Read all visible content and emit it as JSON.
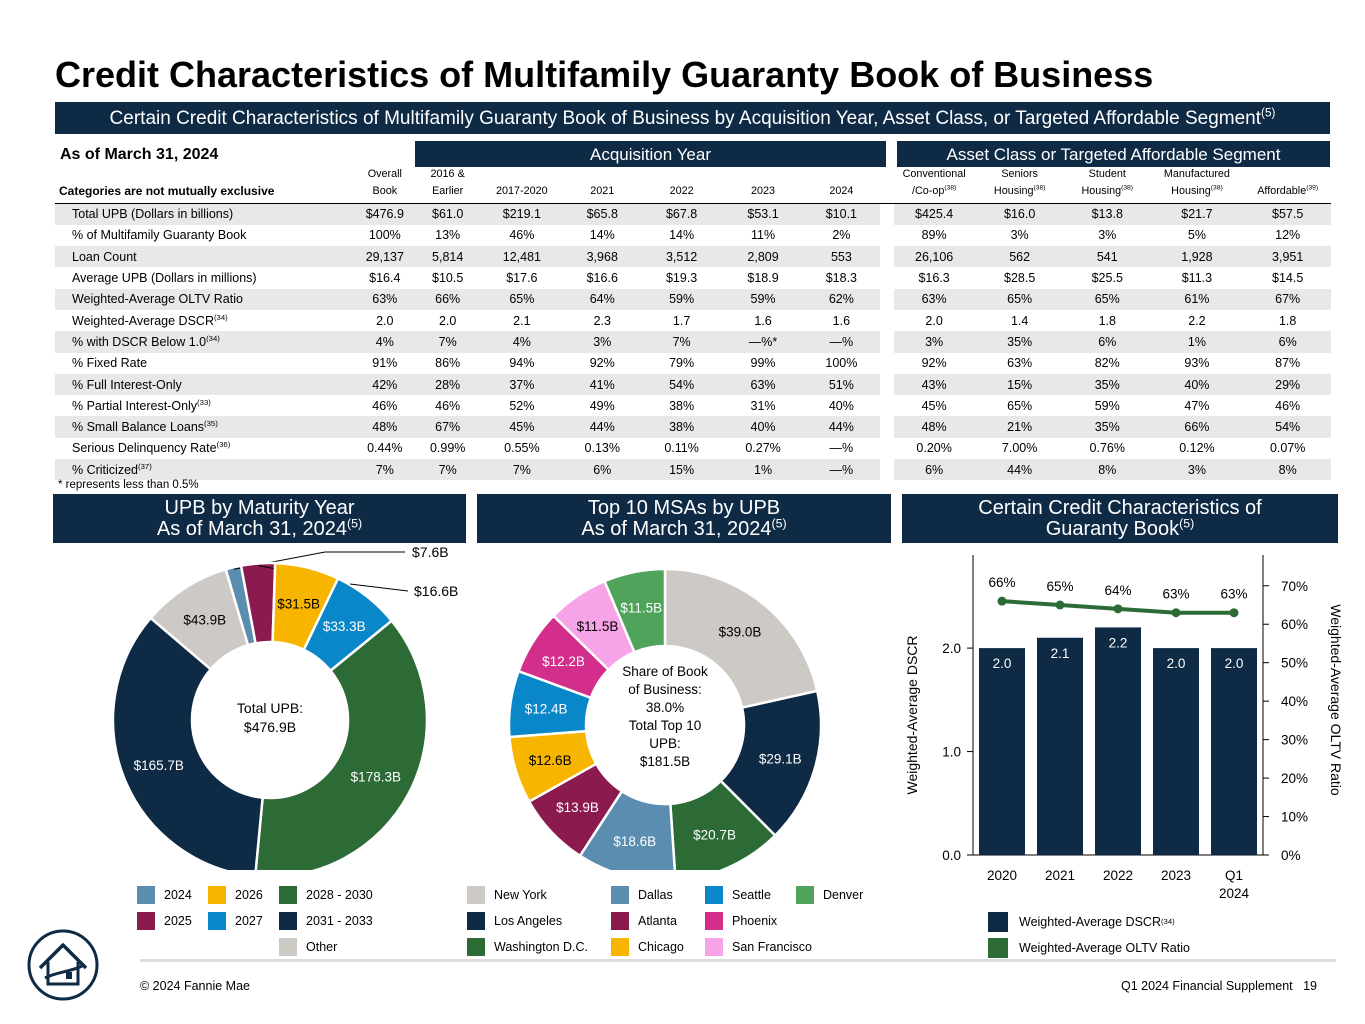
{
  "title": "Credit Characteristics of Multifamily Guaranty Book of Business",
  "banner": {
    "text": "Certain Credit Characteristics of Multifamily Guaranty Book of Business by Acquisition Year, Asset Class, or Targeted Affordable Segment",
    "note": "(5)"
  },
  "as_of": "As of March 31, 2024",
  "acq_header": "Acquisition Year",
  "asset_header": "Asset Class or Targeted Affordable Segment",
  "footnote": "*  represents less than 0.5%",
  "chart_data": [
    {
      "type": "table",
      "category_label": "Categories are not mutually exclusive",
      "columns": [
        {
          "l1": "Overall",
          "l2": "Book",
          "note": ""
        },
        {
          "l1": "2016 &",
          "l2": "Earlier",
          "note": ""
        },
        {
          "l1": "",
          "l2": "2017-2020",
          "note": ""
        },
        {
          "l1": "",
          "l2": "2021",
          "note": ""
        },
        {
          "l1": "",
          "l2": "2022",
          "note": ""
        },
        {
          "l1": "",
          "l2": "2023",
          "note": ""
        },
        {
          "l1": "",
          "l2": "2024",
          "note": ""
        },
        {
          "l1": "Conventional",
          "l2": "/Co-op",
          "note": "(38)"
        },
        {
          "l1": "Seniors",
          "l2": "Housing",
          "note": "(38)"
        },
        {
          "l1": "Student",
          "l2": "Housing",
          "note": "(38)"
        },
        {
          "l1": "Manufactured",
          "l2": "Housing",
          "note": "(38)"
        },
        {
          "l1": "",
          "l2": "Affordable",
          "note": "(39)"
        }
      ],
      "rows": [
        {
          "label": "Total UPB (Dollars in billions)",
          "note": "",
          "values": [
            "$476.9",
            "$61.0",
            "$219.1",
            "$65.8",
            "$67.8",
            "$53.1",
            "$10.1",
            "$425.4",
            "$16.0",
            "$13.8",
            "$21.7",
            "$57.5"
          ]
        },
        {
          "label": "% of Multifamily Guaranty Book",
          "note": "",
          "values": [
            "100%",
            "13%",
            "46%",
            "14%",
            "14%",
            "11%",
            "2%",
            "89%",
            "3%",
            "3%",
            "5%",
            "12%"
          ]
        },
        {
          "label": "Loan Count",
          "note": "",
          "values": [
            "29,137",
            "5,814",
            "12,481",
            "3,968",
            "3,512",
            "2,809",
            "553",
            "26,106",
            "562",
            "541",
            "1,928",
            "3,951"
          ]
        },
        {
          "label": "Average UPB (Dollars in millions)",
          "note": "",
          "values": [
            "$16.4",
            "$10.5",
            "$17.6",
            "$16.6",
            "$19.3",
            "$18.9",
            "$18.3",
            "$16.3",
            "$28.5",
            "$25.5",
            "$11.3",
            "$14.5"
          ]
        },
        {
          "label": "Weighted-Average OLTV Ratio",
          "note": "",
          "values": [
            "63%",
            "66%",
            "65%",
            "64%",
            "59%",
            "59%",
            "62%",
            "63%",
            "65%",
            "65%",
            "61%",
            "67%"
          ]
        },
        {
          "label": "Weighted-Average DSCR",
          "note": "(34)",
          "values": [
            "2.0",
            "2.0",
            "2.1",
            "2.3",
            "1.7",
            "1.6",
            "1.6",
            "2.0",
            "1.4",
            "1.8",
            "2.2",
            "1.8"
          ]
        },
        {
          "label": "% with DSCR Below 1.0",
          "note": "(34)",
          "values": [
            "4%",
            "7%",
            "4%",
            "3%",
            "7%",
            "—%*",
            "—%",
            "3%",
            "35%",
            "6%",
            "1%",
            "6%"
          ]
        },
        {
          "label": "% Fixed Rate",
          "note": "",
          "values": [
            "91%",
            "86%",
            "94%",
            "92%",
            "79%",
            "99%",
            "100%",
            "92%",
            "63%",
            "82%",
            "93%",
            "87%"
          ]
        },
        {
          "label": "% Full Interest-Only",
          "note": "",
          "values": [
            "42%",
            "28%",
            "37%",
            "41%",
            "54%",
            "63%",
            "51%",
            "43%",
            "15%",
            "35%",
            "40%",
            "29%"
          ]
        },
        {
          "label": "% Partial Interest-Only",
          "note": "(33)",
          "values": [
            "46%",
            "46%",
            "52%",
            "49%",
            "38%",
            "31%",
            "40%",
            "45%",
            "65%",
            "59%",
            "47%",
            "46%"
          ]
        },
        {
          "label": "% Small Balance Loans",
          "note": "(35)",
          "values": [
            "48%",
            "67%",
            "45%",
            "44%",
            "38%",
            "40%",
            "44%",
            "48%",
            "21%",
            "35%",
            "66%",
            "54%"
          ]
        },
        {
          "label": "Serious Delinquency Rate",
          "note": "(36)",
          "values": [
            "0.44%",
            "0.99%",
            "0.55%",
            "0.13%",
            "0.11%",
            "0.27%",
            "—%",
            "0.20%",
            "7.00%",
            "0.76%",
            "0.12%",
            "0.07%"
          ]
        },
        {
          "label": "% Criticized",
          "note": "(37)",
          "values": [
            "7%",
            "7%",
            "7%",
            "6%",
            "15%",
            "1%",
            "—%",
            "6%",
            "44%",
            "8%",
            "3%",
            "8%"
          ]
        }
      ]
    },
    {
      "type": "pie",
      "title_l1": "UPB by Maturity Year",
      "title_l2": "As of March 31, 2024",
      "title_note": "(5)",
      "center_l1": "Total UPB:",
      "center_l2": "$476.9B",
      "slices": [
        {
          "name": "Other",
          "value": 43.9,
          "label": "$43.9B",
          "color": "#cdc9c4"
        },
        {
          "name": "2024",
          "value": 7.6,
          "label": "$7.6B",
          "color": "#5b8db0"
        },
        {
          "name": "2025",
          "value": 16.6,
          "label": "$16.6B",
          "color": "#8b1a4f"
        },
        {
          "name": "2026",
          "value": 31.5,
          "label": "$31.5B",
          "color": "#f7b500"
        },
        {
          "name": "2027",
          "value": 33.3,
          "label": "$33.3B",
          "color": "#0a87c8"
        },
        {
          "name": "2028 - 2030",
          "value": 178.3,
          "label": "$178.3B",
          "color": "#2c6b36"
        },
        {
          "name": "2031 - 2033",
          "value": 165.7,
          "label": "$165.7B",
          "color": "#0e2a45"
        }
      ]
    },
    {
      "type": "pie",
      "title_l1": "Top 10 MSAs by UPB",
      "title_l2": "As of March 31, 2024",
      "title_note": "(5)",
      "center_lines": [
        "Share of Book",
        "of Business:",
        "38.0%",
        "Total Top 10",
        "UPB:",
        "$181.5B"
      ],
      "slices": [
        {
          "name": "New York",
          "value": 39.0,
          "label": "$39.0B",
          "color": "#cdc9c4"
        },
        {
          "name": "Los Angeles",
          "value": 29.1,
          "label": "$29.1B",
          "color": "#0e2a45"
        },
        {
          "name": "Washington D.C.",
          "value": 20.7,
          "label": "$20.7B",
          "color": "#2c6b36"
        },
        {
          "name": "Dallas",
          "value": 18.6,
          "label": "$18.6B",
          "color": "#5b8db0"
        },
        {
          "name": "Atlanta",
          "value": 13.9,
          "label": "$13.9B",
          "color": "#8b1a4f"
        },
        {
          "name": "Chicago",
          "value": 12.6,
          "label": "$12.6B",
          "color": "#f7b500"
        },
        {
          "name": "Seattle",
          "value": 12.4,
          "label": "$12.4B",
          "color": "#0a87c8"
        },
        {
          "name": "Phoenix",
          "value": 12.2,
          "label": "$12.2B",
          "color": "#d42e8c"
        },
        {
          "name": "San Francisco",
          "value": 11.5,
          "label": "$11.5B",
          "color": "#f7a3e7"
        },
        {
          "name": "Denver",
          "value": 11.5,
          "label": "$11.5B",
          "color": "#4fa35a"
        }
      ]
    },
    {
      "type": "bar",
      "title_l1": "Certain Credit Characteristics of",
      "title_l2": "Guaranty Book",
      "title_note": "(5)",
      "categories": [
        "2020",
        "2021",
        "2022",
        "2023",
        "Q1 2024"
      ],
      "category_lines": [
        [
          "2020"
        ],
        [
          "2021"
        ],
        [
          "2022"
        ],
        [
          "2023"
        ],
        [
          "Q1",
          "2024"
        ]
      ],
      "series": [
        {
          "name": "Weighted-Average DSCR",
          "note": "(34)",
          "type": "bar",
          "values": [
            2.0,
            2.1,
            2.2,
            2.0,
            2.0
          ],
          "labels": [
            "2.0",
            "2.1",
            "2.2",
            "2.0",
            "2.0"
          ],
          "color": "#0e2a45"
        },
        {
          "name": "Weighted-Average OLTV Ratio",
          "note": "",
          "type": "line",
          "values": [
            66,
            65,
            64,
            63,
            63
          ],
          "labels": [
            "66%",
            "65%",
            "64%",
            "63%",
            "63%"
          ],
          "color": "#2c6b36"
        }
      ],
      "ylabel": "Weighted-Average DSCR",
      "y2label": "Weighted-Average OLTV Ratio",
      "ylim": [
        0,
        2.9
      ],
      "yticks": [
        "0.0",
        "1.0",
        "2.0"
      ],
      "ytick_values": [
        0,
        1,
        2
      ],
      "y2lim": [
        0,
        78
      ],
      "y2ticks": [
        "0%",
        "10%",
        "20%",
        "30%",
        "40%",
        "50%",
        "60%",
        "70%"
      ],
      "y2tick_values": [
        0,
        10,
        20,
        30,
        40,
        50,
        60,
        70
      ]
    }
  ],
  "footer": {
    "copyright": "© 2024 Fannie Mae",
    "supplement": "Q1 2024 Financial Supplement",
    "page": "19"
  }
}
